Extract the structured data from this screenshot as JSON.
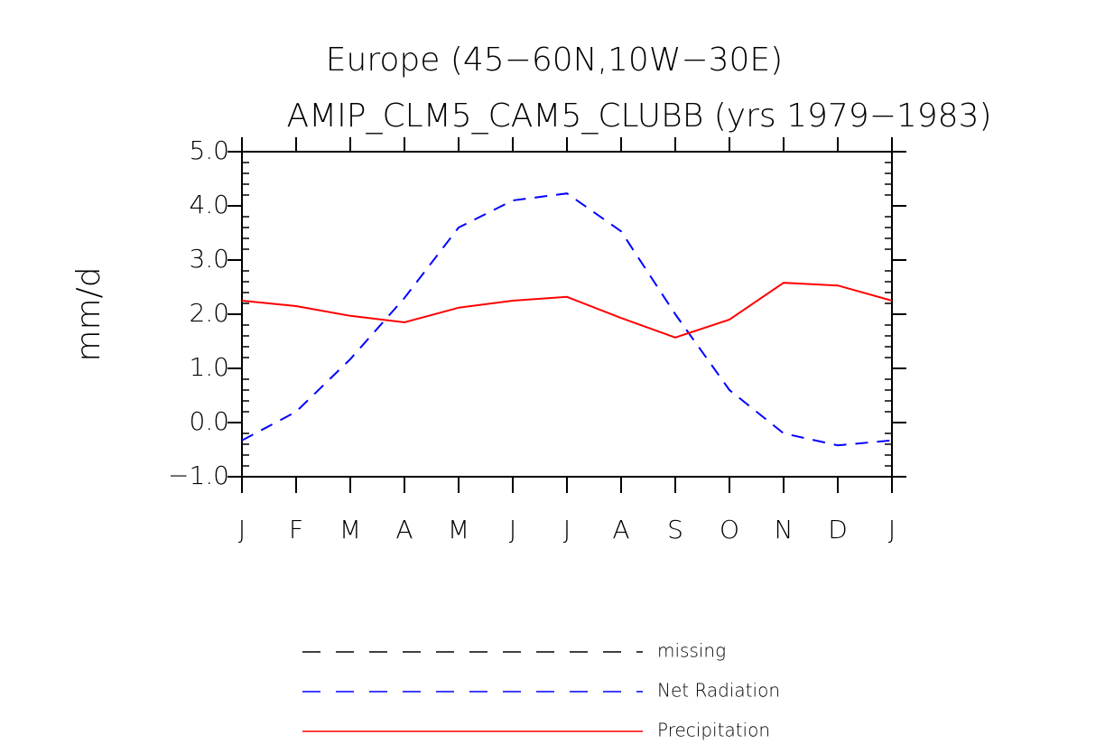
{
  "chart_data": {
    "type": "line",
    "title": "Europe (45−60N,10W−30E)",
    "subtitle": "AMIP_CLM5_CAM5_CLUBB (yrs 1979−1983)",
    "y_label": "mm/d",
    "categories": [
      "J",
      "F",
      "M",
      "A",
      "M",
      "J",
      "J",
      "A",
      "S",
      "O",
      "N",
      "D",
      "J"
    ],
    "ylim": [
      -1,
      5
    ],
    "yticks": [
      {
        "value": -1,
        "label": "−1.0"
      },
      {
        "value": 0,
        "label": "0.0"
      },
      {
        "value": 1,
        "label": "1.0"
      },
      {
        "value": 2,
        "label": "2.0"
      },
      {
        "value": 3,
        "label": "3.0"
      },
      {
        "value": 4,
        "label": "4.0"
      },
      {
        "value": 5,
        "label": "5.0"
      }
    ],
    "series": [
      {
        "name": "missing",
        "color": "#000000",
        "dash": true,
        "values": [
          null,
          null,
          null,
          null,
          null,
          null,
          null,
          null,
          null,
          null,
          null,
          null,
          null
        ]
      },
      {
        "name": "Net Radiation",
        "color": "#0000ff",
        "dash": true,
        "values": [
          -0.33,
          0.2,
          1.17,
          2.3,
          3.6,
          4.1,
          4.23,
          3.53,
          2.0,
          0.6,
          -0.2,
          -0.42,
          -0.33
        ]
      },
      {
        "name": "Precipitation",
        "color": "#ff0000",
        "dash": false,
        "values": [
          2.25,
          2.15,
          1.97,
          1.85,
          2.12,
          2.25,
          2.32,
          1.93,
          1.57,
          1.9,
          2.58,
          2.53,
          2.25
        ]
      }
    ]
  }
}
